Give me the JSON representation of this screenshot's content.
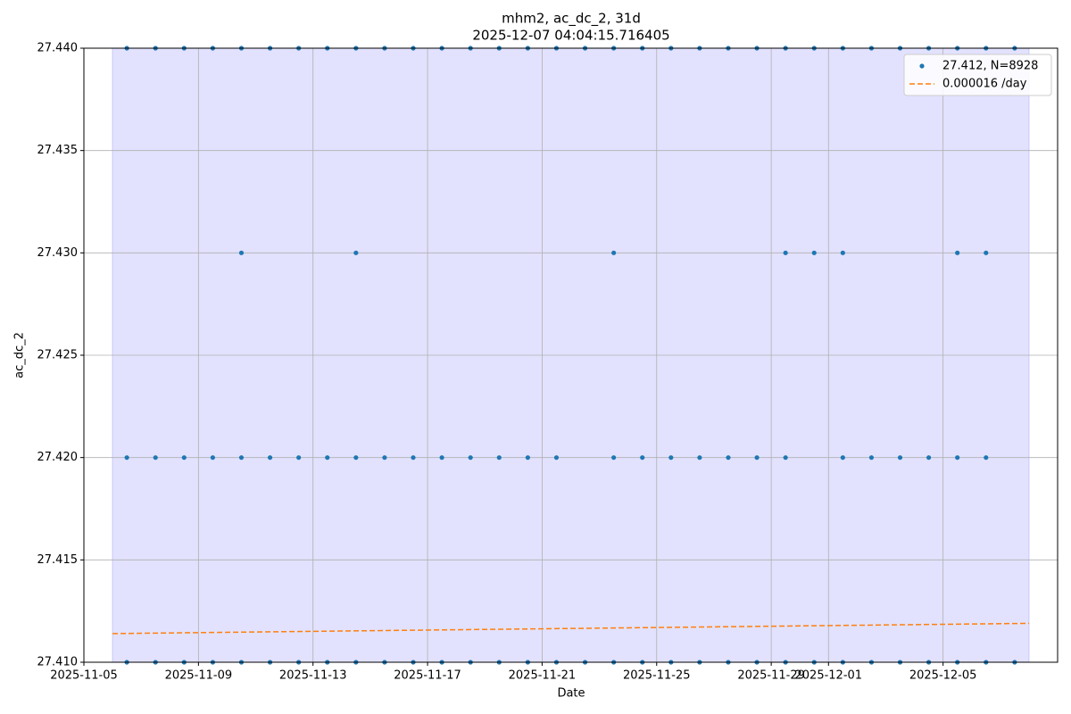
{
  "chart_data": {
    "type": "scatter",
    "title": "mhm2, ac_dc_2, 31d",
    "subtitle": "2025-12-07 04:04:15.716405",
    "x_label": "Date",
    "y_label": "ac_dc_2",
    "xlim": [
      "2025-11-05",
      "2025-12-09"
    ],
    "xticks": [
      "2025-11-05",
      "2025-11-09",
      "2025-11-13",
      "2025-11-17",
      "2025-11-21",
      "2025-11-25",
      "2025-11-29",
      "2025-12-01",
      "2025-12-05"
    ],
    "ylim": [
      27.41,
      27.44
    ],
    "yticks": [
      {
        "value": 27.41,
        "label": "27.410"
      },
      {
        "value": 27.415,
        "label": "27.415"
      },
      {
        "value": 27.42,
        "label": "27.420"
      },
      {
        "value": 27.425,
        "label": "27.425"
      },
      {
        "value": 27.43,
        "label": "27.430"
      },
      {
        "value": 27.435,
        "label": "27.435"
      },
      {
        "value": 27.44,
        "label": "27.440"
      }
    ],
    "grid": true,
    "legend": "upper right",
    "span": {
      "x": [
        "2025-11-06",
        "2025-12-07"
      ],
      "color": "#e2e2fe"
    },
    "series": [
      {
        "name": "27.412, N=8928",
        "color": "#1f77b4",
        "style": "dots",
        "x": [
          "2025-11-06",
          "2025-11-07",
          "2025-11-08",
          "2025-11-09",
          "2025-11-10",
          "2025-11-11",
          "2025-11-12",
          "2025-11-13",
          "2025-11-14",
          "2025-11-15",
          "2025-11-16",
          "2025-11-17",
          "2025-11-18",
          "2025-11-19",
          "2025-11-20",
          "2025-11-21",
          "2025-11-22",
          "2025-11-23",
          "2025-11-24",
          "2025-11-25",
          "2025-11-26",
          "2025-11-27",
          "2025-11-28",
          "2025-11-29",
          "2025-11-30",
          "2025-12-01",
          "2025-12-02",
          "2025-12-03",
          "2025-12-04",
          "2025-12-05",
          "2025-12-06",
          "2025-12-07",
          "2025-11-06",
          "2025-11-07",
          "2025-11-08",
          "2025-11-09",
          "2025-11-10",
          "2025-11-11",
          "2025-11-12",
          "2025-11-13",
          "2025-11-14",
          "2025-11-15",
          "2025-11-16",
          "2025-11-17",
          "2025-11-18",
          "2025-11-19",
          "2025-11-20",
          "2025-11-21",
          "2025-11-22",
          "2025-11-23",
          "2025-11-24",
          "2025-11-25",
          "2025-11-26",
          "2025-11-27",
          "2025-11-28",
          "2025-11-29",
          "2025-11-30",
          "2025-12-01",
          "2025-12-02",
          "2025-12-03",
          "2025-12-04",
          "2025-12-05",
          "2025-12-06",
          "2025-12-07",
          "2025-11-06",
          "2025-11-07",
          "2025-11-08",
          "2025-11-09",
          "2025-11-10",
          "2025-11-11",
          "2025-11-12",
          "2025-11-13",
          "2025-11-14",
          "2025-11-15",
          "2025-11-16",
          "2025-11-17",
          "2025-11-18",
          "2025-11-19",
          "2025-11-20",
          "2025-11-21",
          "2025-11-23",
          "2025-11-24",
          "2025-11-25",
          "2025-11-26",
          "2025-11-27",
          "2025-11-28",
          "2025-11-29",
          "2025-12-01",
          "2025-12-02",
          "2025-12-03",
          "2025-12-04",
          "2025-12-05",
          "2025-12-06",
          "2025-11-10",
          "2025-11-14",
          "2025-11-23",
          "2025-11-29",
          "2025-11-30",
          "2025-12-01",
          "2025-12-05",
          "2025-12-06"
        ],
        "values": [
          27.41,
          27.41,
          27.41,
          27.41,
          27.41,
          27.41,
          27.41,
          27.41,
          27.41,
          27.41,
          27.41,
          27.41,
          27.41,
          27.41,
          27.41,
          27.41,
          27.41,
          27.41,
          27.41,
          27.41,
          27.41,
          27.41,
          27.41,
          27.41,
          27.41,
          27.41,
          27.41,
          27.41,
          27.41,
          27.41,
          27.41,
          27.41,
          27.44,
          27.44,
          27.44,
          27.44,
          27.44,
          27.44,
          27.44,
          27.44,
          27.44,
          27.44,
          27.44,
          27.44,
          27.44,
          27.44,
          27.44,
          27.44,
          27.44,
          27.44,
          27.44,
          27.44,
          27.44,
          27.44,
          27.44,
          27.44,
          27.44,
          27.44,
          27.44,
          27.44,
          27.44,
          27.44,
          27.44,
          27.44,
          27.42,
          27.42,
          27.42,
          27.42,
          27.42,
          27.42,
          27.42,
          27.42,
          27.42,
          27.42,
          27.42,
          27.42,
          27.42,
          27.42,
          27.42,
          27.42,
          27.42,
          27.42,
          27.42,
          27.42,
          27.42,
          27.42,
          27.42,
          27.42,
          27.42,
          27.42,
          27.42,
          27.42,
          27.42,
          27.43,
          27.43,
          27.43,
          27.43,
          27.43,
          27.43,
          27.43,
          27.43
        ]
      },
      {
        "name": "0.000016 /day",
        "color": "#ff7f0e",
        "style": "dashed",
        "x": [
          "2025-11-06",
          "2025-12-07"
        ],
        "values": [
          27.4114,
          27.4119
        ]
      }
    ]
  }
}
